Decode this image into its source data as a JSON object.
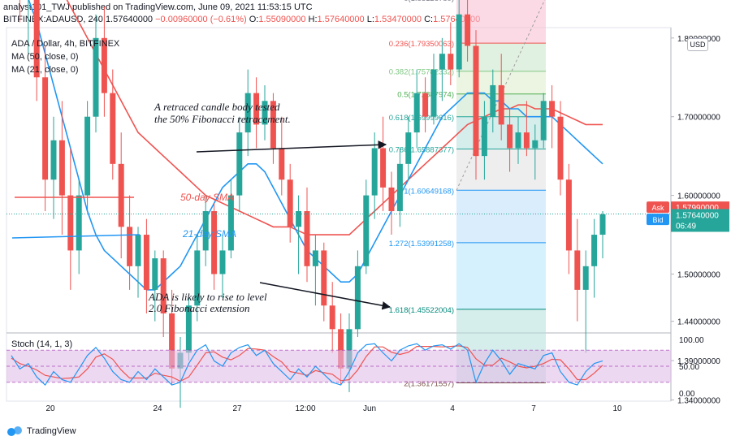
{
  "header": {
    "line1": "analyst101_TWJ published on TradingView.com, June 09, 2021 11:53:15 UTC",
    "symbol": "BITFINEX:ADAUSD, 240",
    "last": "1.57640000",
    "change": "−0.00960000 (−0.61%)",
    "o_label": "O:",
    "o": "1.55090000",
    "h_label": "H:",
    "h": "1.57640000",
    "l_label": "L:",
    "l": "1.53470000",
    "c_label": "C:",
    "c": "1.57640000"
  },
  "legend": {
    "title": "ADA / Dollar, 4h, BITFINEX",
    "ma50": "MA (50, close, 0)",
    "ma21": "MA (21, close, 0)",
    "stoch": "Stoch (14, 1, 3)"
  },
  "currency": "USD",
  "annotations": {
    "note1": "A retraced candle body tested",
    "note2": "the 50% Fibonacci retracement.",
    "note3": "ADA is likely to rise to level",
    "note4": "2.0  Fibonacci extension",
    "sma50": "50-day SMA",
    "sma21": "21-day SMA"
  },
  "price_tags": {
    "ask_label": "Ask",
    "ask": "1.57990000",
    "bid_label": "Bid",
    "bid": "1.57860000",
    "last": "1.57640000",
    "countdown": "06:49"
  },
  "footer": {
    "brand": "TradingView"
  },
  "colors": {
    "up": "#26a69a",
    "down": "#ef5350",
    "ma50": "#ef5350",
    "ma21": "#2196f3",
    "stoch_k": "#2196f3",
    "stoch_d": "#ef5350",
    "stoch_band": "#e1bee7",
    "ask": "#ef5350",
    "bid": "#2196f3",
    "last_tag": "#26a69a"
  },
  "chart_data": {
    "type": "candlestick",
    "price_axis": [
      "2.00000000",
      "1.90000000",
      "1.80000000",
      "1.70000000",
      "1.60000000",
      "1.50000000",
      "1.44000000",
      "1.39000000",
      "1.34000000"
    ],
    "price_axis_values": [
      2.0,
      1.9,
      1.8,
      1.7,
      1.6,
      1.5,
      1.44,
      1.39,
      1.34
    ],
    "x_labels": [
      "20",
      "24",
      "27",
      "12:00",
      "Jun",
      "4",
      "7",
      "10"
    ],
    "stoch_axis": [
      "100.00",
      "50.00",
      "0.00"
    ],
    "stoch_axis_values": [
      100,
      50,
      0
    ],
    "fibonacci": [
      {
        "label": "0(1.85126780)",
        "value": 1.8513
      },
      {
        "label": "0.236(1.79350063)",
        "value": 1.7935
      },
      {
        "label": "0.382(1.75782332)",
        "value": 1.7578
      },
      {
        "label": "0.5(1.72887974)",
        "value": 1.7289
      },
      {
        "label": "0.618(1.69999616)",
        "value": 1.6999
      },
      {
        "label": "0.786(1.65887377)",
        "value": 1.6589
      },
      {
        "label": "1(1.60649168)",
        "value": 1.6065
      },
      {
        "label": "1.272(1.53991258)",
        "value": 1.5399
      },
      {
        "label": "1.618(1.45522004)",
        "value": 1.4552
      },
      {
        "label": "2(1.36171557)",
        "value": 1.3617
      }
    ],
    "candles": [
      [
        1.97,
        2.02,
        1.88,
        1.9
      ],
      [
        1.9,
        1.93,
        1.82,
        1.85
      ],
      [
        1.85,
        1.9,
        1.78,
        1.88
      ],
      [
        1.88,
        1.89,
        1.72,
        1.75
      ],
      [
        1.75,
        1.79,
        1.58,
        1.62
      ],
      [
        1.62,
        1.7,
        1.57,
        1.67
      ],
      [
        1.67,
        1.72,
        1.55,
        1.6
      ],
      [
        1.6,
        1.66,
        1.48,
        1.53
      ],
      [
        1.53,
        1.62,
        1.5,
        1.6
      ],
      [
        1.6,
        1.72,
        1.58,
        1.7
      ],
      [
        1.7,
        1.83,
        1.68,
        1.8
      ],
      [
        1.8,
        1.84,
        1.7,
        1.73
      ],
      [
        1.73,
        1.76,
        1.62,
        1.64
      ],
      [
        1.64,
        1.68,
        1.52,
        1.56
      ],
      [
        1.56,
        1.6,
        1.48,
        1.51
      ],
      [
        1.51,
        1.56,
        1.47,
        1.55
      ],
      [
        1.55,
        1.57,
        1.45,
        1.48
      ],
      [
        1.48,
        1.53,
        1.44,
        1.52
      ],
      [
        1.52,
        1.53,
        1.42,
        1.45
      ],
      [
        1.45,
        1.48,
        1.36,
        1.38
      ],
      [
        1.38,
        1.42,
        1.33,
        1.4
      ],
      [
        1.4,
        1.47,
        1.39,
        1.46
      ],
      [
        1.46,
        1.55,
        1.44,
        1.53
      ],
      [
        1.53,
        1.6,
        1.51,
        1.58
      ],
      [
        1.58,
        1.59,
        1.48,
        1.5
      ],
      [
        1.5,
        1.55,
        1.47,
        1.53
      ],
      [
        1.53,
        1.62,
        1.52,
        1.6
      ],
      [
        1.6,
        1.7,
        1.58,
        1.68
      ],
      [
        1.68,
        1.76,
        1.65,
        1.73
      ],
      [
        1.73,
        1.75,
        1.66,
        1.69
      ],
      [
        1.69,
        1.74,
        1.67,
        1.72
      ],
      [
        1.72,
        1.73,
        1.64,
        1.66
      ],
      [
        1.66,
        1.7,
        1.6,
        1.62
      ],
      [
        1.62,
        1.64,
        1.54,
        1.56
      ],
      [
        1.56,
        1.6,
        1.5,
        1.58
      ],
      [
        1.58,
        1.61,
        1.49,
        1.51
      ],
      [
        1.51,
        1.55,
        1.46,
        1.53
      ],
      [
        1.53,
        1.54,
        1.44,
        1.46
      ],
      [
        1.46,
        1.49,
        1.4,
        1.43
      ],
      [
        1.43,
        1.45,
        1.36,
        1.38
      ],
      [
        1.38,
        1.45,
        1.35,
        1.43
      ],
      [
        1.43,
        1.53,
        1.42,
        1.51
      ],
      [
        1.51,
        1.62,
        1.5,
        1.6
      ],
      [
        1.6,
        1.68,
        1.57,
        1.66
      ],
      [
        1.66,
        1.7,
        1.58,
        1.61
      ],
      [
        1.61,
        1.63,
        1.55,
        1.58
      ],
      [
        1.58,
        1.66,
        1.56,
        1.64
      ],
      [
        1.64,
        1.7,
        1.62,
        1.68
      ],
      [
        1.68,
        1.76,
        1.66,
        1.73
      ],
      [
        1.73,
        1.75,
        1.68,
        1.7
      ],
      [
        1.7,
        1.78,
        1.69,
        1.76
      ],
      [
        1.76,
        1.8,
        1.72,
        1.78
      ],
      [
        1.78,
        1.82,
        1.74,
        1.76
      ],
      [
        1.76,
        1.86,
        1.75,
        1.83
      ],
      [
        1.83,
        1.85,
        1.77,
        1.79
      ],
      [
        1.79,
        1.81,
        1.62,
        1.65
      ],
      [
        1.65,
        1.72,
        1.62,
        1.7
      ],
      [
        1.7,
        1.76,
        1.68,
        1.74
      ],
      [
        1.74,
        1.78,
        1.67,
        1.69
      ],
      [
        1.69,
        1.71,
        1.63,
        1.66
      ],
      [
        1.66,
        1.7,
        1.64,
        1.68
      ],
      [
        1.68,
        1.72,
        1.65,
        1.66
      ],
      [
        1.66,
        1.69,
        1.62,
        1.67
      ],
      [
        1.67,
        1.73,
        1.66,
        1.72
      ],
      [
        1.72,
        1.74,
        1.66,
        1.7
      ],
      [
        1.7,
        1.72,
        1.6,
        1.62
      ],
      [
        1.62,
        1.64,
        1.5,
        1.53
      ],
      [
        1.53,
        1.57,
        1.44,
        1.48
      ],
      [
        1.48,
        1.53,
        1.4,
        1.51
      ],
      [
        1.51,
        1.57,
        1.47,
        1.55
      ],
      [
        1.55,
        1.58,
        1.52,
        1.576
      ]
    ],
    "ma50": [
      1.95,
      1.94,
      1.93,
      1.91,
      1.9,
      1.88,
      1.86,
      1.84,
      1.82,
      1.8,
      1.78,
      1.76,
      1.74,
      1.72,
      1.7,
      1.68,
      1.67,
      1.66,
      1.65,
      1.64,
      1.63,
      1.62,
      1.61,
      1.6,
      1.595,
      1.59,
      1.585,
      1.58,
      1.575,
      1.57,
      1.565,
      1.56,
      1.56,
      1.56,
      1.555,
      1.55,
      1.55,
      1.55,
      1.55,
      1.55,
      1.55,
      1.56,
      1.57,
      1.58,
      1.59,
      1.6,
      1.61,
      1.62,
      1.63,
      1.64,
      1.65,
      1.66,
      1.67,
      1.68,
      1.69,
      1.695,
      1.7,
      1.705,
      1.71,
      1.71,
      1.715,
      1.715,
      1.71,
      1.71,
      1.71,
      1.705,
      1.7,
      1.695,
      1.69,
      1.69,
      1.69
    ],
    "ma21": [
      1.9,
      1.88,
      1.85,
      1.82,
      1.78,
      1.74,
      1.7,
      1.66,
      1.62,
      1.58,
      1.55,
      1.53,
      1.52,
      1.51,
      1.5,
      1.49,
      1.48,
      1.48,
      1.49,
      1.5,
      1.51,
      1.53,
      1.55,
      1.57,
      1.59,
      1.61,
      1.62,
      1.63,
      1.64,
      1.64,
      1.63,
      1.61,
      1.59,
      1.57,
      1.55,
      1.53,
      1.52,
      1.51,
      1.5,
      1.49,
      1.49,
      1.5,
      1.52,
      1.54,
      1.56,
      1.58,
      1.6,
      1.62,
      1.64,
      1.66,
      1.68,
      1.7,
      1.71,
      1.72,
      1.73,
      1.73,
      1.73,
      1.72,
      1.72,
      1.71,
      1.71,
      1.7,
      1.7,
      1.7,
      1.7,
      1.69,
      1.68,
      1.67,
      1.66,
      1.65,
      1.64
    ],
    "stoch_k": [
      70,
      45,
      55,
      30,
      15,
      40,
      25,
      20,
      45,
      70,
      85,
      65,
      40,
      25,
      20,
      40,
      25,
      45,
      30,
      15,
      20,
      55,
      80,
      90,
      60,
      50,
      75,
      85,
      90,
      70,
      80,
      55,
      40,
      25,
      45,
      30,
      50,
      35,
      20,
      15,
      40,
      75,
      90,
      92,
      75,
      60,
      80,
      88,
      92,
      80,
      88,
      90,
      82,
      92,
      80,
      20,
      55,
      80,
      60,
      35,
      55,
      50,
      45,
      70,
      75,
      40,
      20,
      15,
      40,
      55,
      60
    ],
    "stoch_d": [
      65,
      55,
      50,
      43,
      33,
      30,
      27,
      28,
      30,
      45,
      67,
      73,
      63,
      43,
      28,
      28,
      28,
      37,
      33,
      30,
      22,
      30,
      52,
      75,
      77,
      67,
      62,
      70,
      83,
      82,
      80,
      68,
      58,
      40,
      37,
      33,
      42,
      38,
      35,
      23,
      25,
      43,
      68,
      86,
      86,
      76,
      72,
      76,
      87,
      87,
      87,
      86,
      87,
      88,
      85,
      64,
      52,
      52,
      65,
      58,
      50,
      47,
      50,
      55,
      63,
      62,
      45,
      25,
      25,
      37,
      52
    ]
  }
}
